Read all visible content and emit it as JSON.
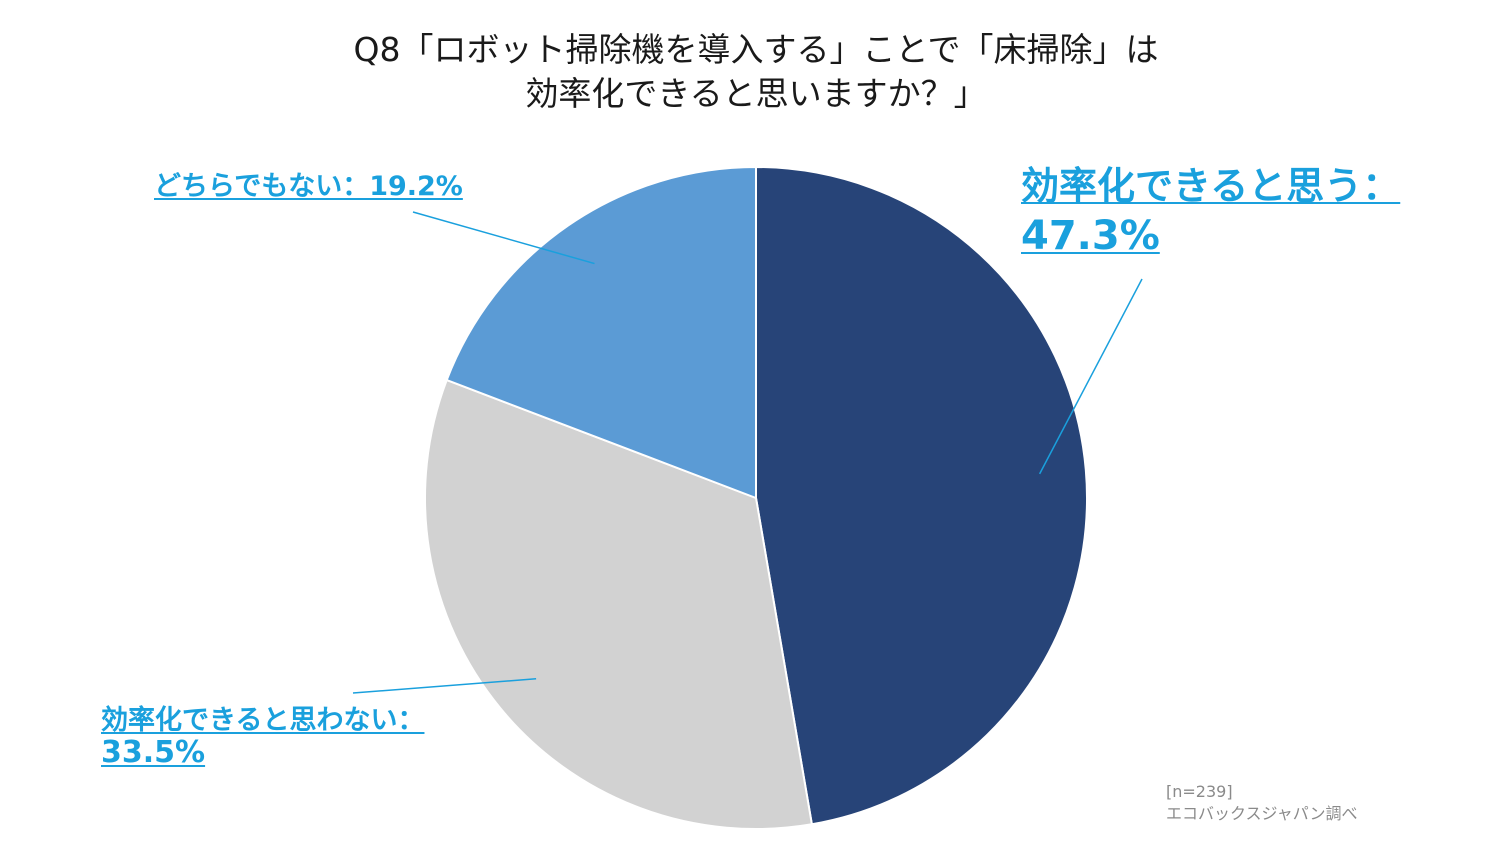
{
  "title": {
    "line1": "Q8「ロボット掃除機を導入する」ことで「床掃除」は",
    "line2": "効率化できると思いますか？」"
  },
  "chart_data": {
    "type": "pie",
    "slices": [
      {
        "label": "効率化できると思う",
        "value": 47.3,
        "display": "効率化できると思う：",
        "pct_text": "47.3%",
        "color": "#274478"
      },
      {
        "label": "効率化できると思わない",
        "value": 33.5,
        "display": "効率化できると思わない：",
        "pct_text": "33.5%",
        "color": "#d2d2d2"
      },
      {
        "label": "どちらでもない",
        "value": 19.2,
        "display": "どちらでもない：19.2%",
        "pct_text": "19.2%",
        "color": "#5b9bd5"
      }
    ],
    "label_color": "#1aa0dd",
    "start": "12 o'clock, clockwise"
  },
  "note": {
    "sample": "[n=239]",
    "source": "エコバックスジャパン調べ"
  }
}
